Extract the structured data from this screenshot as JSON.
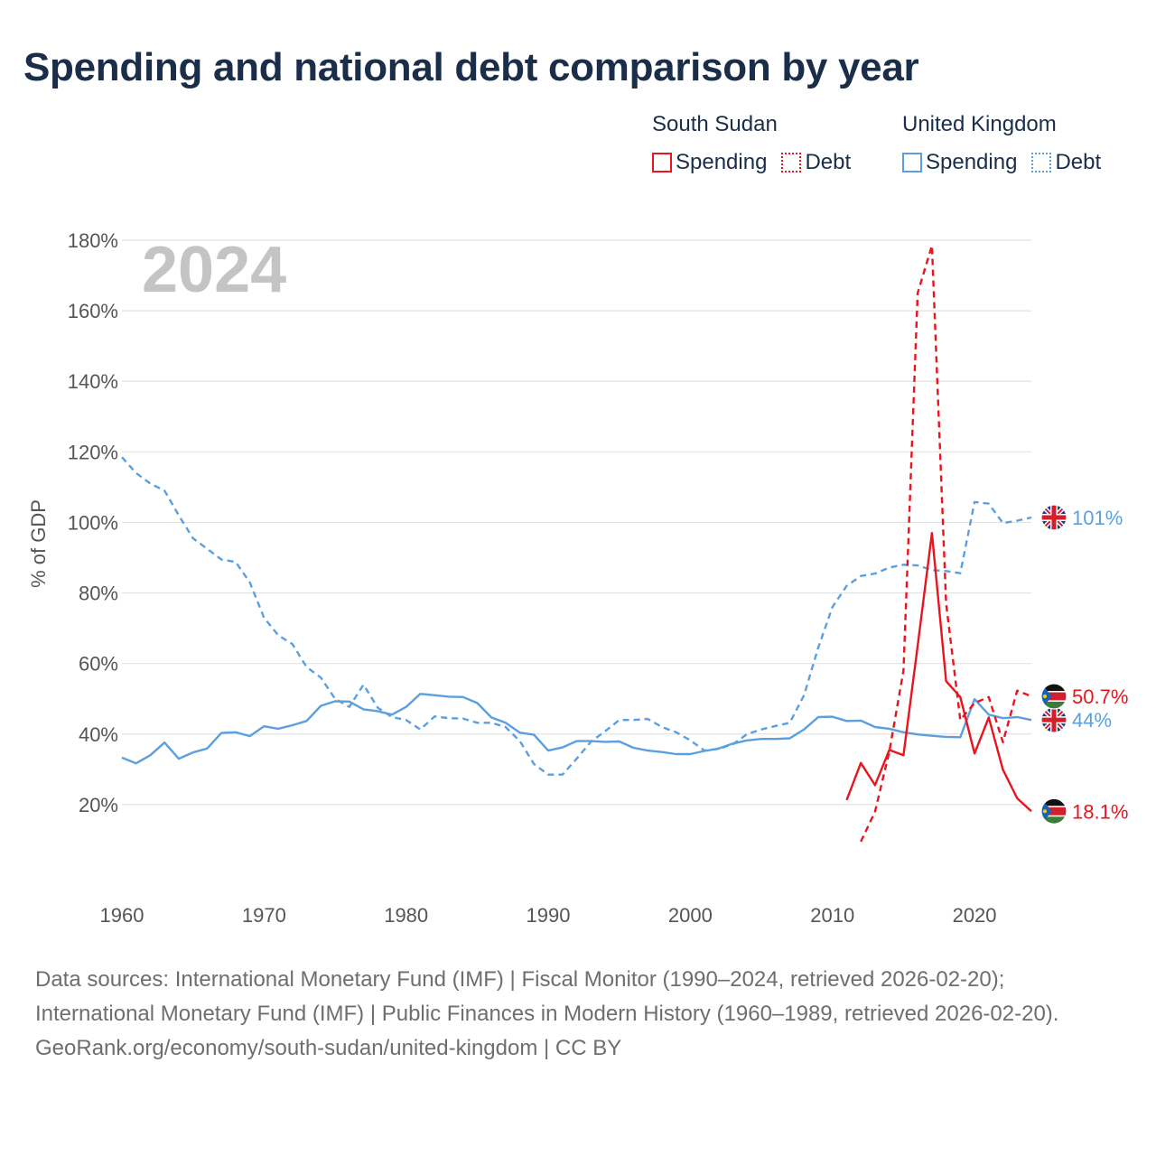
{
  "title": "Spending and national debt comparison by year",
  "legend": {
    "groups": [
      {
        "name": "South Sudan",
        "items": [
          {
            "label": "Spending",
            "style": "solid"
          },
          {
            "label": "Debt",
            "style": "dotted"
          }
        ]
      },
      {
        "name": "United Kingdom",
        "items": [
          {
            "label": "Spending",
            "style": "solid"
          },
          {
            "label": "Debt",
            "style": "dotted"
          }
        ]
      }
    ]
  },
  "year_watermark": "2024",
  "colors": {
    "south_sudan": "#e8141e",
    "united_kingdom": "#5b9fde",
    "grid": "#e2e2e2"
  },
  "chart_data": {
    "type": "line",
    "title": "Spending and national debt comparison by year",
    "xlabel": "",
    "ylabel": "% of GDP",
    "xlim": [
      1960,
      2024
    ],
    "ylim": [
      0,
      180
    ],
    "x_ticks": [
      1960,
      1970,
      1980,
      1990,
      2000,
      2010,
      2020
    ],
    "y_ticks": [
      20,
      40,
      60,
      80,
      100,
      120,
      140,
      160,
      180
    ],
    "y_tick_labels": [
      "20%",
      "40%",
      "60%",
      "80%",
      "100%",
      "120%",
      "140%",
      "160%",
      "180%"
    ],
    "x_tick_labels": [
      "1960",
      "1970",
      "1980",
      "1990",
      "2000",
      "2010",
      "2020"
    ],
    "series": [
      {
        "name": "United Kingdom Debt",
        "country": "United Kingdom",
        "metric": "Debt",
        "style": "dashed",
        "color": "#5b9fde",
        "x": [
          1960,
          1961,
          1962,
          1963,
          1964,
          1965,
          1966,
          1967,
          1968,
          1969,
          1970,
          1971,
          1972,
          1973,
          1974,
          1975,
          1976,
          1977,
          1978,
          1979,
          1980,
          1981,
          1982,
          1983,
          1984,
          1985,
          1986,
          1987,
          1988,
          1989,
          1990,
          1991,
          1992,
          1993,
          1994,
          1995,
          1996,
          1997,
          1998,
          1999,
          2000,
          2001,
          2002,
          2003,
          2004,
          2005,
          2006,
          2007,
          2008,
          2009,
          2010,
          2011,
          2012,
          2013,
          2014,
          2015,
          2016,
          2017,
          2018,
          2019,
          2020,
          2021,
          2022,
          2023,
          2024
        ],
        "values": [
          118.5,
          114,
          111,
          109,
          102,
          95.5,
          92.5,
          89.5,
          88.8,
          83,
          73,
          68,
          65.5,
          59,
          56,
          50,
          47.7,
          54,
          47.5,
          44.8,
          44,
          41.3,
          45,
          44.5,
          44.4,
          43.2,
          43.2,
          42,
          38,
          31.5,
          28.5,
          28.5,
          33,
          37.8,
          40.8,
          44,
          44,
          44.3,
          42,
          40.5,
          38.2,
          35.3,
          35.8,
          37.1,
          40,
          41.3,
          42.3,
          43.2,
          51,
          64.5,
          76,
          82,
          84.8,
          85.5,
          87.2,
          88,
          87.8,
          86.5,
          86.2,
          85.6,
          105.8,
          105.3,
          99.8,
          100.5,
          101.4
        ],
        "end_label": "101%"
      },
      {
        "name": "United Kingdom Spending",
        "country": "United Kingdom",
        "metric": "Spending",
        "style": "solid",
        "color": "#5b9fde",
        "x": [
          1960,
          1961,
          1962,
          1963,
          1964,
          1965,
          1966,
          1967,
          1968,
          1969,
          1970,
          1971,
          1972,
          1973,
          1974,
          1975,
          1976,
          1977,
          1978,
          1979,
          1980,
          1981,
          1982,
          1983,
          1984,
          1985,
          1986,
          1987,
          1988,
          1989,
          1990,
          1991,
          1992,
          1993,
          1994,
          1995,
          1996,
          1997,
          1998,
          1999,
          2000,
          2001,
          2002,
          2003,
          2004,
          2005,
          2006,
          2007,
          2008,
          2009,
          2010,
          2011,
          2012,
          2013,
          2014,
          2015,
          2016,
          2017,
          2018,
          2019,
          2020,
          2021,
          2022,
          2023,
          2024
        ],
        "values": [
          33.3,
          31.7,
          34,
          37.6,
          33,
          34.8,
          35.9,
          40.3,
          40.5,
          39.4,
          42.2,
          41.5,
          42.5,
          43.7,
          48,
          49.3,
          49.2,
          47,
          46.5,
          45.5,
          47.7,
          51.4,
          51,
          50.6,
          50.5,
          48.8,
          44.7,
          43.2,
          40.4,
          39.8,
          35.3,
          36.2,
          38,
          38,
          37.8,
          37.9,
          36.1,
          35.3,
          34.9,
          34.3,
          34.3,
          35.2,
          35.9,
          37.3,
          38.2,
          38.6,
          38.6,
          38.8,
          41.3,
          44.8,
          44.9,
          43.7,
          43.8,
          42,
          41.5,
          40.5,
          39.9,
          39.5,
          39.2,
          39.1,
          49.9,
          45.5,
          44.5,
          44.8,
          44
        ],
        "end_label": "44%"
      },
      {
        "name": "South Sudan Debt",
        "country": "South Sudan",
        "metric": "Debt",
        "style": "dashed",
        "color": "#e8141e",
        "x": [
          2012,
          2013,
          2014,
          2015,
          2016,
          2017,
          2018,
          2019,
          2020,
          2021,
          2022,
          2023,
          2024
        ],
        "values": [
          9.5,
          18,
          35,
          58,
          165,
          178.5,
          77,
          44,
          48.8,
          50.5,
          37.7,
          52.3,
          50.7
        ],
        "end_label": "50.7%"
      },
      {
        "name": "South Sudan Spending",
        "country": "South Sudan",
        "metric": "Spending",
        "style": "solid",
        "color": "#e8141e",
        "x": [
          2011,
          2012,
          2013,
          2014,
          2015,
          2016,
          2017,
          2018,
          2019,
          2020,
          2021,
          2022,
          2023,
          2024
        ],
        "values": [
          21.3,
          31.8,
          25.5,
          35.5,
          34,
          65,
          97,
          55,
          50.5,
          34.5,
          44.7,
          29.9,
          21.8,
          18.1
        ],
        "end_label": "18.1%"
      }
    ]
  },
  "footer": {
    "sources_line": "Data sources: International Monetary Fund (IMF) | Fiscal Monitor (1990–2024, retrieved 2026-02-20); International Monetary Fund (IMF) | Public Finances in Modern History (1960–1989, retrieved 2026-02-20).",
    "credit_line": "GeoRank.org/economy/south-sudan/united-kingdom | CC BY"
  }
}
